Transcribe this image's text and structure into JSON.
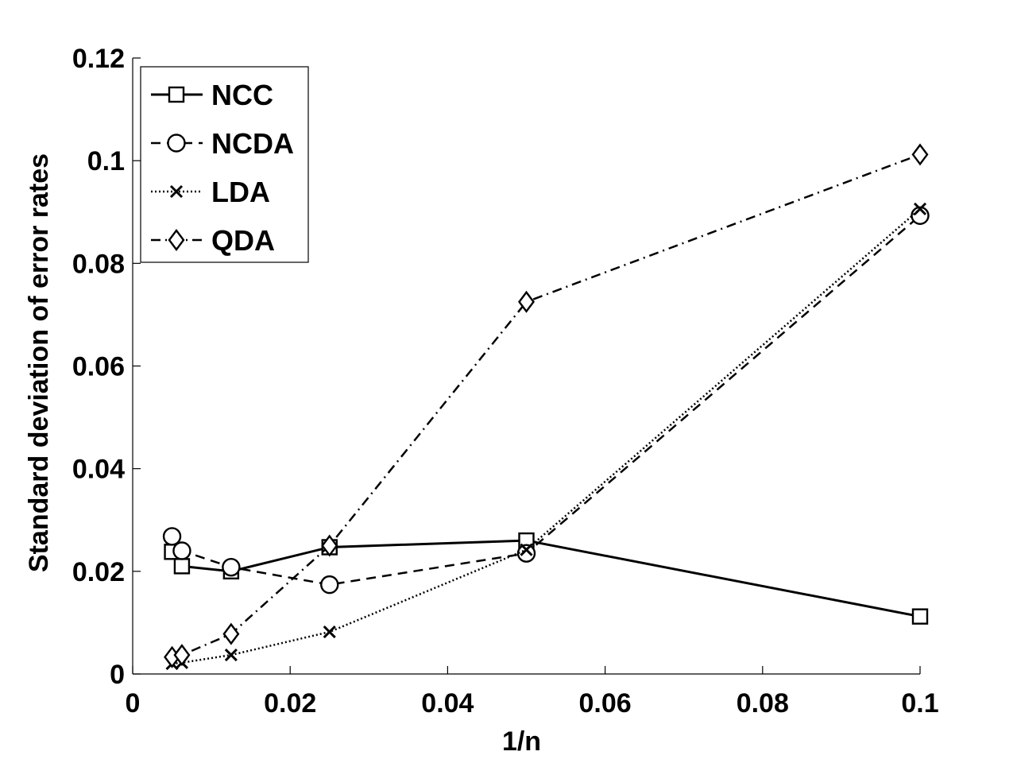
{
  "chart_data": {
    "type": "line",
    "xlabel": "1/n",
    "ylabel": "Standard deviation of  error rates",
    "xlim": [
      0,
      0.1
    ],
    "ylim": [
      0,
      0.12
    ],
    "xticks": [
      0,
      0.02,
      0.04,
      0.06,
      0.08,
      0.1
    ],
    "xtick_labels": [
      "0",
      "0.02",
      "0.04",
      "0.06",
      "0.08",
      "0.1"
    ],
    "yticks": [
      0,
      0.02,
      0.04,
      0.06,
      0.08,
      0.1,
      0.12
    ],
    "ytick_labels": [
      "0",
      "0.02",
      "0.04",
      "0.06",
      "0.08",
      "0.1",
      "0.12"
    ],
    "legend_position": "top-left",
    "x": [
      0.005,
      0.00625,
      0.0125,
      0.025,
      0.05,
      0.1
    ],
    "series": [
      {
        "name": "NCC",
        "marker": "square",
        "line": "solid",
        "values": [
          0.0238,
          0.021,
          0.02,
          0.0247,
          0.026,
          0.0112
        ]
      },
      {
        "name": "NCDA",
        "marker": "circle",
        "line": "dashed",
        "values": [
          0.0268,
          0.024,
          0.0208,
          0.0174,
          0.0235,
          0.0893
        ]
      },
      {
        "name": "LDA",
        "marker": "x",
        "line": "dotted",
        "values": [
          0.002,
          0.0022,
          0.0037,
          0.0082,
          0.0242,
          0.0906
        ]
      },
      {
        "name": "QDA",
        "marker": "diamond",
        "line": "dashdot",
        "values": [
          0.0033,
          0.0037,
          0.0078,
          0.025,
          0.0725,
          0.1012
        ]
      }
    ]
  }
}
